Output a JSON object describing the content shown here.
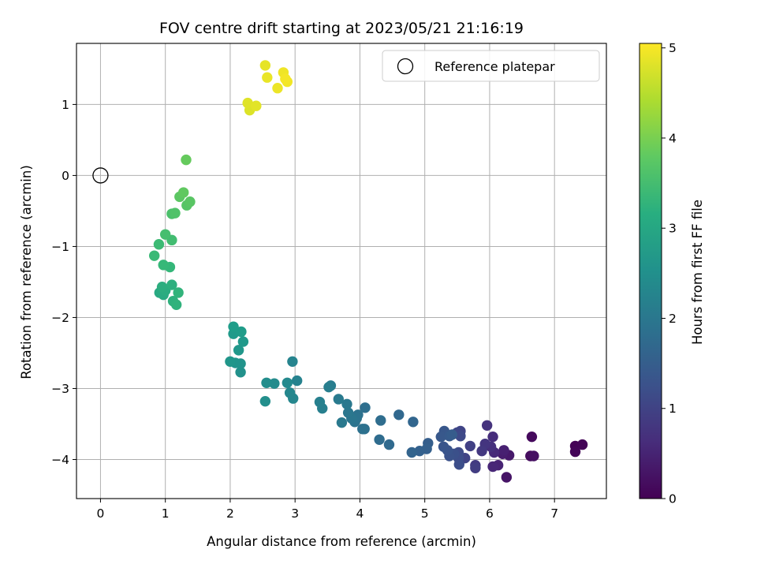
{
  "chart_data": {
    "type": "scatter",
    "title": "FOV centre drift starting at 2023/05/21 21:16:19",
    "xlabel": "Angular distance from reference (arcmin)",
    "ylabel": "Rotation from reference (arcmin)",
    "xlim": [
      -0.37,
      7.8
    ],
    "ylim": [
      -4.55,
      1.86
    ],
    "xticks": [
      0,
      1,
      2,
      3,
      4,
      5,
      6,
      7
    ],
    "yticks": [
      -4,
      -3,
      -2,
      -1,
      0,
      1
    ],
    "grid": true,
    "legend": {
      "placement": "top-right",
      "entries": [
        "Reference platepar"
      ]
    },
    "reference_point": {
      "x": 0,
      "y": 0
    },
    "colorbar": {
      "label": "Hours from first FF file",
      "colormap": "viridis",
      "range": [
        0,
        5.05
      ],
      "ticks": [
        0,
        1,
        2,
        3,
        4,
        5
      ]
    },
    "series": [
      {
        "points": [
          {
            "x": 7.32,
            "y": -3.81,
            "c": 0.02
          },
          {
            "x": 7.43,
            "y": -3.79,
            "c": 0.04
          },
          {
            "x": 7.32,
            "y": -3.89,
            "c": 0.06
          },
          {
            "x": 6.65,
            "y": -3.68,
            "c": 0.12
          },
          {
            "x": 6.63,
            "y": -3.95,
            "c": 0.16
          },
          {
            "x": 6.68,
            "y": -3.95,
            "c": 0.2
          },
          {
            "x": 6.26,
            "y": -4.25,
            "c": 0.28
          },
          {
            "x": 6.3,
            "y": -3.94,
            "c": 0.34
          },
          {
            "x": 6.2,
            "y": -3.92,
            "c": 0.4
          },
          {
            "x": 6.22,
            "y": -3.87,
            "c": 0.45
          },
          {
            "x": 6.13,
            "y": -4.08,
            "c": 0.5
          },
          {
            "x": 6.05,
            "y": -4.1,
            "c": 0.55
          },
          {
            "x": 6.07,
            "y": -3.9,
            "c": 0.6
          },
          {
            "x": 6.05,
            "y": -3.68,
            "c": 0.65
          },
          {
            "x": 6.02,
            "y": -3.82,
            "c": 0.7
          },
          {
            "x": 5.96,
            "y": -3.52,
            "c": 0.74
          },
          {
            "x": 5.93,
            "y": -3.78,
            "c": 0.78
          },
          {
            "x": 5.88,
            "y": -3.88,
            "c": 0.82
          },
          {
            "x": 5.78,
            "y": -4.08,
            "c": 0.86
          },
          {
            "x": 5.78,
            "y": -4.12,
            "c": 0.9
          },
          {
            "x": 5.7,
            "y": -3.81,
            "c": 0.95
          },
          {
            "x": 5.62,
            "y": -3.98,
            "c": 1.0
          },
          {
            "x": 5.55,
            "y": -3.6,
            "c": 1.03
          },
          {
            "x": 5.5,
            "y": -3.62,
            "c": 1.06
          },
          {
            "x": 5.55,
            "y": -3.67,
            "c": 1.1
          },
          {
            "x": 5.52,
            "y": -3.9,
            "c": 1.14
          },
          {
            "x": 5.52,
            "y": -3.98,
            "c": 1.17
          },
          {
            "x": 5.53,
            "y": -4.07,
            "c": 1.2
          },
          {
            "x": 5.45,
            "y": -3.92,
            "c": 1.24
          },
          {
            "x": 5.38,
            "y": -3.95,
            "c": 1.27
          },
          {
            "x": 5.35,
            "y": -3.87,
            "c": 1.3
          },
          {
            "x": 5.29,
            "y": -3.82,
            "c": 1.33
          },
          {
            "x": 5.3,
            "y": -3.6,
            "c": 1.36
          },
          {
            "x": 5.25,
            "y": -3.68,
            "c": 1.39
          },
          {
            "x": 5.38,
            "y": -3.67,
            "c": 1.42
          },
          {
            "x": 5.42,
            "y": -3.65,
            "c": 1.45
          },
          {
            "x": 5.05,
            "y": -3.77,
            "c": 1.5
          },
          {
            "x": 5.03,
            "y": -3.85,
            "c": 1.53
          },
          {
            "x": 4.92,
            "y": -3.88,
            "c": 1.56
          },
          {
            "x": 4.8,
            "y": -3.9,
            "c": 1.6
          },
          {
            "x": 4.82,
            "y": -3.47,
            "c": 1.64
          },
          {
            "x": 4.6,
            "y": -3.37,
            "c": 1.68
          },
          {
            "x": 4.45,
            "y": -3.79,
            "c": 1.72
          },
          {
            "x": 4.3,
            "y": -3.72,
            "c": 1.76
          },
          {
            "x": 4.32,
            "y": -3.45,
            "c": 1.8
          },
          {
            "x": 4.08,
            "y": -3.27,
            "c": 1.84
          },
          {
            "x": 4.07,
            "y": -3.57,
            "c": 1.86
          },
          {
            "x": 4.04,
            "y": -3.57,
            "c": 1.88
          },
          {
            "x": 3.97,
            "y": -3.37,
            "c": 1.9
          },
          {
            "x": 3.95,
            "y": -3.42,
            "c": 1.93
          },
          {
            "x": 3.92,
            "y": -3.47,
            "c": 1.95
          },
          {
            "x": 3.87,
            "y": -3.42,
            "c": 1.98
          },
          {
            "x": 3.82,
            "y": -3.34,
            "c": 2.0
          },
          {
            "x": 3.8,
            "y": -3.22,
            "c": 2.02
          },
          {
            "x": 3.72,
            "y": -3.48,
            "c": 2.05
          },
          {
            "x": 3.67,
            "y": -3.15,
            "c": 2.08
          },
          {
            "x": 3.55,
            "y": -2.96,
            "c": 2.12
          },
          {
            "x": 3.52,
            "y": -2.98,
            "c": 2.15
          },
          {
            "x": 3.42,
            "y": -3.28,
            "c": 2.18
          },
          {
            "x": 3.38,
            "y": -3.19,
            "c": 2.2
          },
          {
            "x": 3.03,
            "y": -2.89,
            "c": 2.25
          },
          {
            "x": 2.96,
            "y": -2.62,
            "c": 2.28
          },
          {
            "x": 2.97,
            "y": -3.14,
            "c": 2.32
          },
          {
            "x": 2.92,
            "y": -3.06,
            "c": 2.35
          },
          {
            "x": 2.88,
            "y": -2.92,
            "c": 2.38
          },
          {
            "x": 2.68,
            "y": -2.93,
            "c": 2.42
          },
          {
            "x": 2.56,
            "y": -2.92,
            "c": 2.46
          },
          {
            "x": 2.54,
            "y": -3.18,
            "c": 2.5
          },
          {
            "x": 2.16,
            "y": -2.77,
            "c": 2.55
          },
          {
            "x": 2.16,
            "y": -2.65,
            "c": 2.58
          },
          {
            "x": 2.08,
            "y": -2.64,
            "c": 2.61
          },
          {
            "x": 2.0,
            "y": -2.62,
            "c": 2.64
          },
          {
            "x": 2.13,
            "y": -2.46,
            "c": 2.67
          },
          {
            "x": 2.2,
            "y": -2.34,
            "c": 2.7
          },
          {
            "x": 2.05,
            "y": -2.23,
            "c": 2.73
          },
          {
            "x": 2.17,
            "y": -2.2,
            "c": 2.76
          },
          {
            "x": 2.05,
            "y": -2.13,
            "c": 2.79
          },
          {
            "x": 0.91,
            "y": -1.65,
            "c": 3.05
          },
          {
            "x": 0.97,
            "y": -1.68,
            "c": 3.08
          },
          {
            "x": 1.0,
            "y": -1.62,
            "c": 3.12
          },
          {
            "x": 0.95,
            "y": -1.57,
            "c": 3.15
          },
          {
            "x": 1.1,
            "y": -1.54,
            "c": 3.18
          },
          {
            "x": 1.12,
            "y": -1.77,
            "c": 3.22
          },
          {
            "x": 1.17,
            "y": -1.82,
            "c": 3.25
          },
          {
            "x": 1.2,
            "y": -1.65,
            "c": 3.28
          },
          {
            "x": 1.07,
            "y": -1.29,
            "c": 3.35
          },
          {
            "x": 0.97,
            "y": -1.26,
            "c": 3.38
          },
          {
            "x": 0.83,
            "y": -1.13,
            "c": 3.42
          },
          {
            "x": 0.9,
            "y": -0.97,
            "c": 3.45
          },
          {
            "x": 1.1,
            "y": -0.91,
            "c": 3.5
          },
          {
            "x": 1.0,
            "y": -0.83,
            "c": 3.54
          },
          {
            "x": 1.1,
            "y": -0.54,
            "c": 3.6
          },
          {
            "x": 1.15,
            "y": -0.53,
            "c": 3.64
          },
          {
            "x": 1.33,
            "y": -0.42,
            "c": 3.7
          },
          {
            "x": 1.38,
            "y": -0.37,
            "c": 3.73
          },
          {
            "x": 1.22,
            "y": -0.3,
            "c": 3.76
          },
          {
            "x": 1.28,
            "y": -0.24,
            "c": 3.8
          },
          {
            "x": 1.32,
            "y": 0.22,
            "c": 3.85
          },
          {
            "x": 2.3,
            "y": 0.92,
            "c": 4.8
          },
          {
            "x": 2.27,
            "y": 1.02,
            "c": 4.82
          },
          {
            "x": 2.4,
            "y": 0.98,
            "c": 4.84
          },
          {
            "x": 2.54,
            "y": 1.55,
            "c": 4.87
          },
          {
            "x": 2.57,
            "y": 1.38,
            "c": 4.9
          },
          {
            "x": 2.73,
            "y": 1.23,
            "c": 4.92
          },
          {
            "x": 2.82,
            "y": 1.45,
            "c": 4.94
          },
          {
            "x": 2.88,
            "y": 1.32,
            "c": 4.96
          },
          {
            "x": 2.85,
            "y": 1.36,
            "c": 4.98
          }
        ]
      }
    ]
  }
}
